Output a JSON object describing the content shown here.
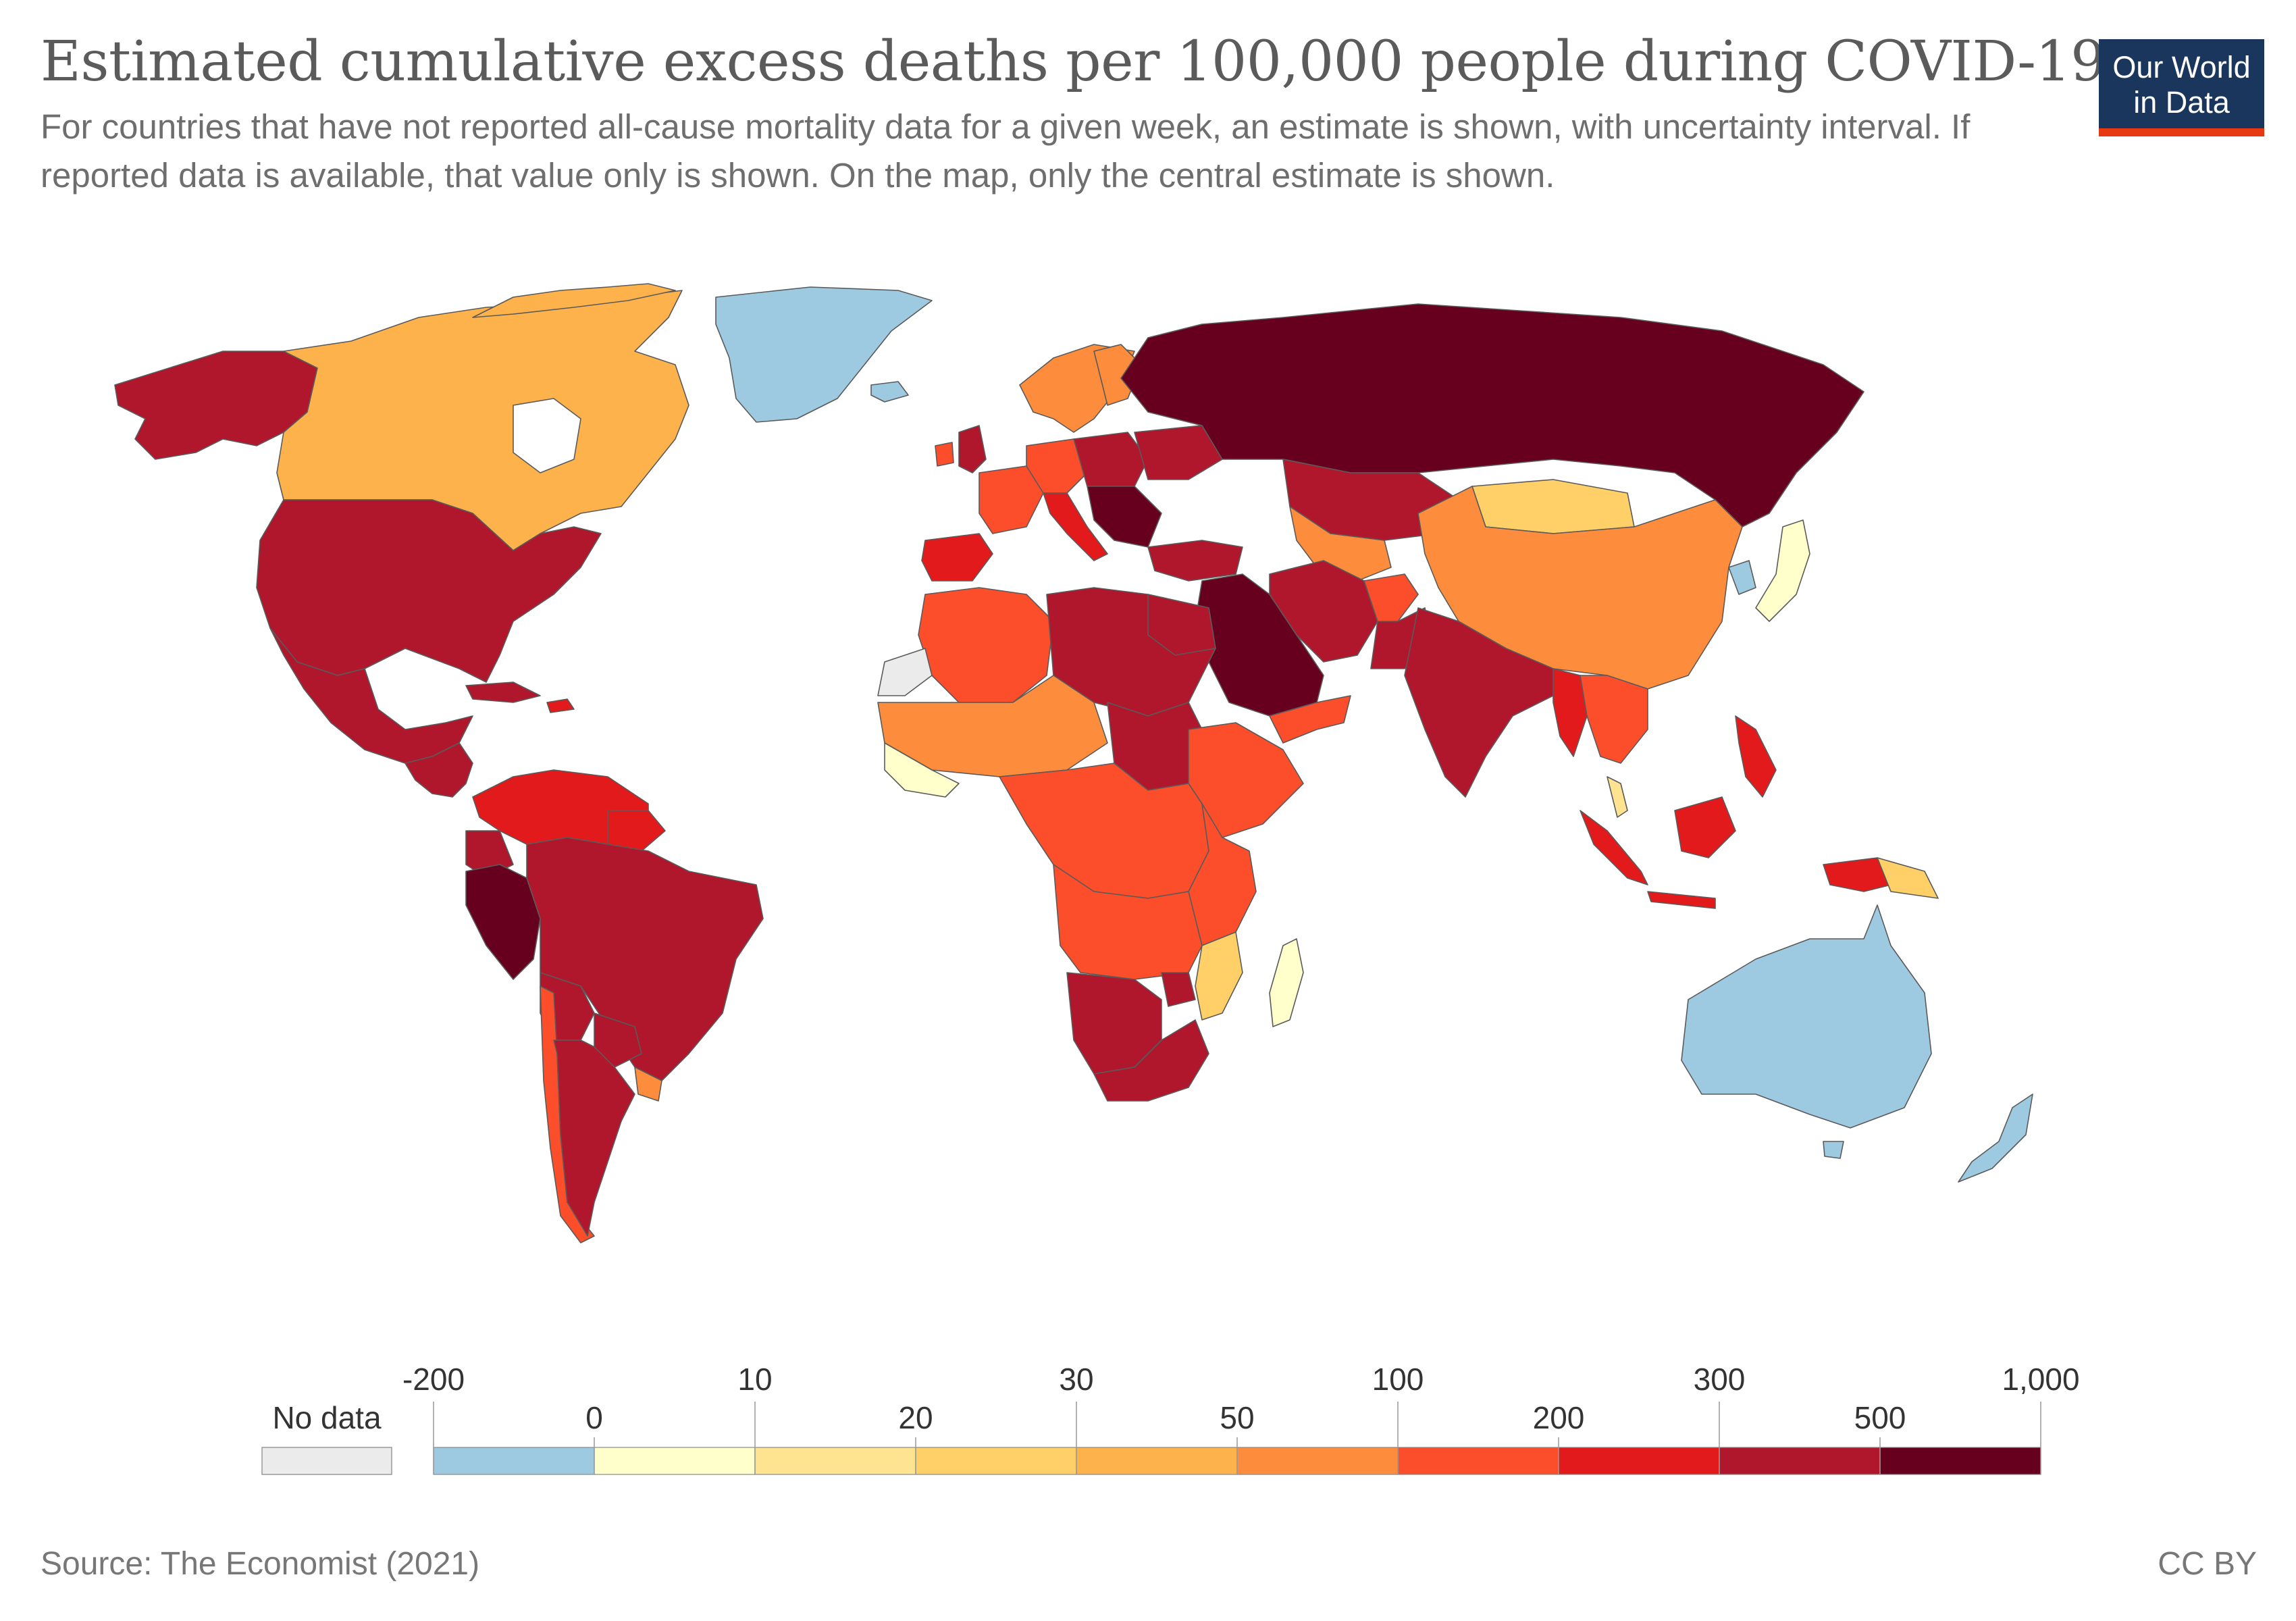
{
  "header": {
    "title": "Estimated cumulative excess deaths per 100,000 people during COVID-19",
    "subtitle": "For countries that have not reported all-cause mortality data for a given week, an estimate is shown, with uncertainty interval. If reported data is available, that value only is shown. On the map, only the central estimate is shown."
  },
  "logo": {
    "line1": "Our World",
    "line2": "in Data"
  },
  "legend": {
    "no_data_label": "No data",
    "no_data_color": "#ebebeb",
    "bins": [
      {
        "color": "#9ecae1",
        "range": [
          -200,
          0
        ]
      },
      {
        "color": "#ffffcc",
        "range": [
          0,
          10
        ]
      },
      {
        "color": "#fee391",
        "range": [
          10,
          20
        ]
      },
      {
        "color": "#fed067",
        "range": [
          20,
          30
        ]
      },
      {
        "color": "#feb24c",
        "range": [
          30,
          50
        ]
      },
      {
        "color": "#fd8d3c",
        "range": [
          50,
          100
        ]
      },
      {
        "color": "#fc4e2a",
        "range": [
          100,
          200
        ]
      },
      {
        "color": "#e31a1c",
        "range": [
          200,
          300
        ]
      },
      {
        "color": "#b1172c",
        "range": [
          300,
          500
        ]
      },
      {
        "color": "#67001f",
        "range": [
          500,
          1000
        ]
      }
    ],
    "upper_ticks": [
      "-200",
      "10",
      "30",
      "100",
      "300",
      "1,000"
    ],
    "lower_ticks": [
      "0",
      "20",
      "50",
      "200",
      "500"
    ]
  },
  "map_colors": {
    "ocean": "#ffffff",
    "border": "#5a5a5a",
    "no_data": "#ebebeb"
  },
  "footer": {
    "source": "Source: The Economist (2021)",
    "license": "CC BY"
  }
}
